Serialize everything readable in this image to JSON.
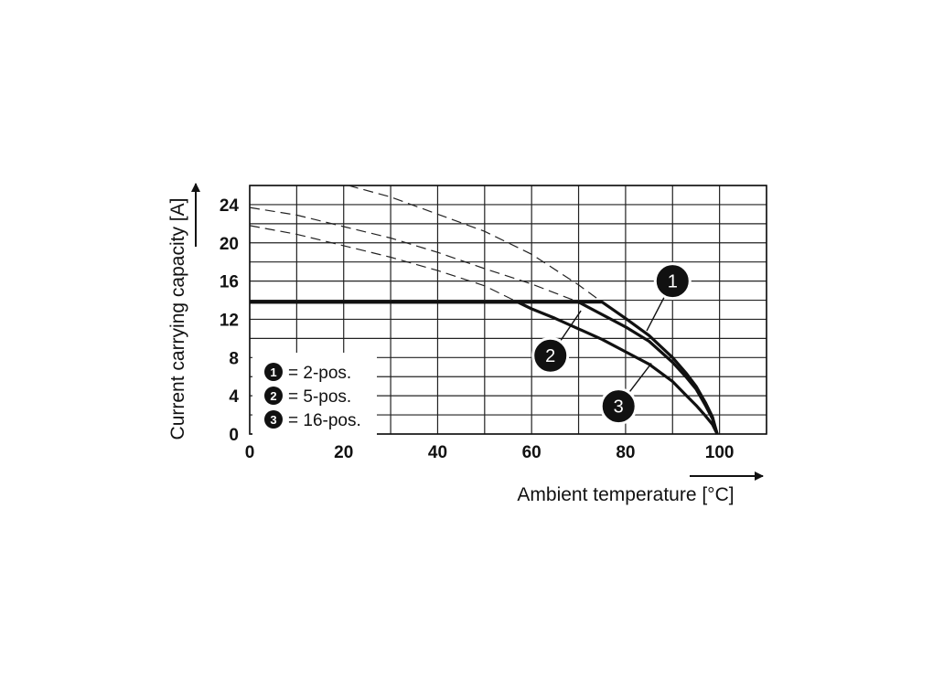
{
  "chart_data": {
    "type": "line",
    "xlabel": "Ambient temperature [°C]",
    "ylabel": "Current carrying capacity [A]",
    "xlim": [
      0,
      110
    ],
    "ylim": [
      0,
      26
    ],
    "x_ticks": [
      "0",
      "20",
      "40",
      "60",
      "80",
      "100"
    ],
    "y_ticks": [
      "0",
      "4",
      "8",
      "12",
      "16",
      "20",
      "24"
    ],
    "grid": true,
    "legend_position": "bottom-left",
    "legend": [
      {
        "marker": "1",
        "text": "= 2-pos."
      },
      {
        "marker": "2",
        "text": "= 5-pos."
      },
      {
        "marker": "3",
        "text": "= 16-pos."
      }
    ],
    "series": [
      {
        "marker": "1",
        "solid": [
          [
            0,
            13.8
          ],
          [
            75,
            13.8
          ],
          [
            80,
            12.1
          ],
          [
            85,
            10.3
          ],
          [
            90,
            8.0
          ],
          [
            93,
            6.3
          ],
          [
            95,
            5.0
          ],
          [
            97,
            3.3
          ],
          [
            98.5,
            1.8
          ],
          [
            99.5,
            0
          ]
        ],
        "dashed": [
          [
            21,
            26.0
          ],
          [
            30,
            24.8
          ],
          [
            40,
            23.0
          ],
          [
            50,
            21.2
          ],
          [
            60,
            18.8
          ],
          [
            70,
            15.6
          ],
          [
            75,
            13.8
          ]
        ]
      },
      {
        "marker": "2",
        "solid": [
          [
            0,
            13.8
          ],
          [
            70,
            13.8
          ],
          [
            80,
            11.2
          ],
          [
            85,
            9.7
          ],
          [
            90,
            7.5
          ],
          [
            93,
            5.9
          ],
          [
            95,
            4.7
          ],
          [
            97,
            3.0
          ],
          [
            98.5,
            1.6
          ],
          [
            99.5,
            0
          ]
        ],
        "dashed": [
          [
            0,
            23.7
          ],
          [
            10,
            22.9
          ],
          [
            20,
            21.7
          ],
          [
            30,
            20.5
          ],
          [
            40,
            19.0
          ],
          [
            50,
            17.3
          ],
          [
            60,
            15.7
          ],
          [
            70,
            13.8
          ]
        ]
      },
      {
        "marker": "3",
        "solid": [
          [
            0,
            13.8
          ],
          [
            57,
            13.8
          ],
          [
            60,
            13.1
          ],
          [
            65,
            12.1
          ],
          [
            70,
            11.0
          ],
          [
            75,
            9.9
          ],
          [
            80,
            8.6
          ],
          [
            85,
            7.3
          ],
          [
            90,
            5.5
          ],
          [
            93,
            4.0
          ],
          [
            95,
            3.0
          ],
          [
            97,
            1.9
          ],
          [
            98.5,
            1.0
          ],
          [
            99.5,
            0
          ]
        ],
        "dashed": [
          [
            0,
            21.8
          ],
          [
            10,
            20.9
          ],
          [
            20,
            19.7
          ],
          [
            30,
            18.5
          ],
          [
            40,
            17.1
          ],
          [
            50,
            15.5
          ],
          [
            57,
            13.8
          ]
        ]
      }
    ],
    "callouts": [
      {
        "marker": "1",
        "at": [
          90,
          16.0
        ],
        "points_to": [
          84.5,
          10.8
        ]
      },
      {
        "marker": "2",
        "at": [
          64,
          8.2
        ],
        "points_to": [
          70.5,
          12.9
        ]
      },
      {
        "marker": "3",
        "at": [
          78.5,
          2.9
        ],
        "points_to": [
          85.5,
          7.4
        ]
      }
    ]
  }
}
